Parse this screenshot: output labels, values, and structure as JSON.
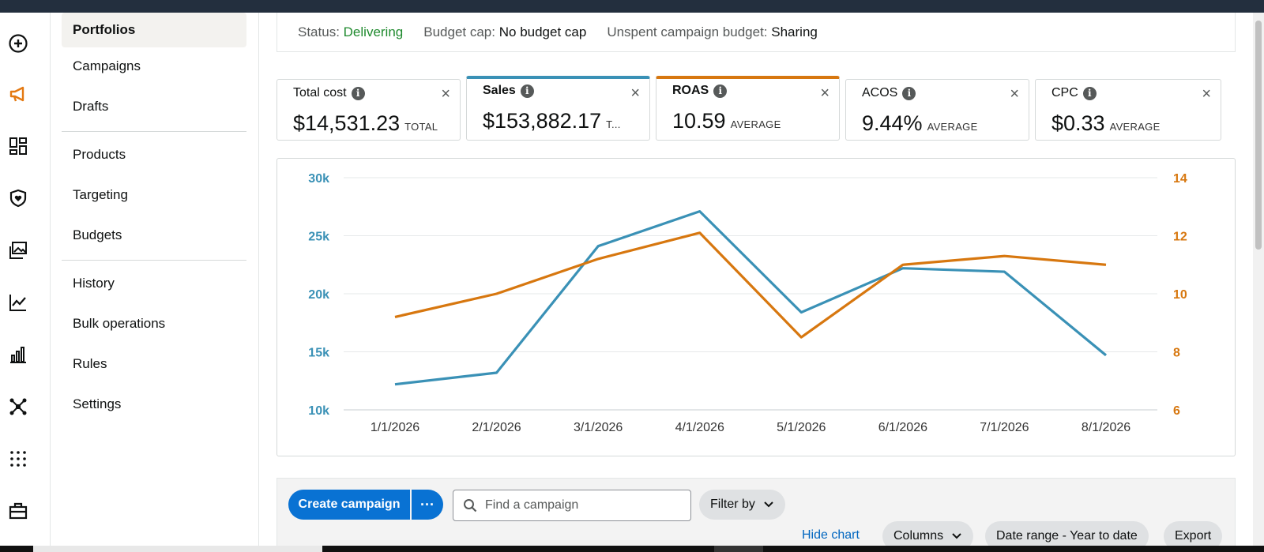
{
  "rail": {
    "icons": [
      "plus-circle-icon",
      "megaphone-icon",
      "dashboard-icon",
      "shield-icon",
      "images-icon",
      "line-chart-icon",
      "bar-chart-icon",
      "network-icon",
      "grid-dots-icon",
      "briefcase-icon"
    ],
    "accent": "#e47911"
  },
  "sidebar": {
    "items": [
      {
        "label": "Portfolios",
        "active": true
      },
      {
        "label": "Campaigns"
      },
      {
        "label": "Drafts"
      },
      {
        "label": "Products"
      },
      {
        "label": "Targeting"
      },
      {
        "label": "Budgets"
      },
      {
        "label": "History"
      },
      {
        "label": "Bulk operations"
      },
      {
        "label": "Rules"
      },
      {
        "label": "Settings"
      }
    ]
  },
  "status": {
    "status_label": "Status:",
    "status_value": "Delivering",
    "budget_label": "Budget cap:",
    "budget_value": "No budget cap",
    "unspent_label": "Unspent campaign budget:",
    "unspent_value": "Sharing"
  },
  "metrics": [
    {
      "title": "Total cost",
      "value": "$14,531.23",
      "suffix": "TOTAL"
    },
    {
      "title": "Sales",
      "value": "$153,882.17",
      "suffix": "T...",
      "color": "#3a91b6"
    },
    {
      "title": "ROAS",
      "value": "10.59",
      "suffix": "AVERAGE",
      "color": "#d7770f"
    },
    {
      "title": "ACOS",
      "value": "9.44%",
      "suffix": "AVERAGE"
    },
    {
      "title": "CPC",
      "value": "$0.33",
      "suffix": "AVERAGE"
    }
  ],
  "info_glyph": "i",
  "close_glyph": "×",
  "chart_data": {
    "type": "line",
    "x": [
      "1/1/2026",
      "2/1/2026",
      "3/1/2026",
      "4/1/2026",
      "5/1/2026",
      "6/1/2026",
      "7/1/2026",
      "8/1/2026"
    ],
    "left_axis": {
      "ticks": [
        "30k",
        "25k",
        "20k",
        "15k",
        "10k"
      ],
      "range": [
        10000,
        30000
      ],
      "color": "#3a91b6"
    },
    "right_axis": {
      "ticks": [
        "14",
        "12",
        "10",
        "8",
        "6"
      ],
      "range": [
        6,
        14
      ],
      "color": "#d7770f"
    },
    "series": [
      {
        "name": "Sales",
        "axis": "left",
        "color": "#3a91b6",
        "values": [
          12200,
          13200,
          24100,
          27100,
          18400,
          22200,
          21900,
          14700
        ]
      },
      {
        "name": "ROAS",
        "axis": "right",
        "color": "#d7770f",
        "values": [
          9.2,
          10.0,
          11.2,
          12.1,
          8.5,
          11.0,
          11.3,
          11.0
        ]
      }
    ],
    "grid": true
  },
  "toolbar": {
    "create_label": "Create campaign",
    "more_label": "···",
    "search_placeholder": "Find a campaign",
    "filter_label": "Filter by",
    "hide_chart_label": "Hide chart",
    "columns_label": "Columns",
    "date_range_label": "Date range - Year to date",
    "export_label": "Export"
  }
}
